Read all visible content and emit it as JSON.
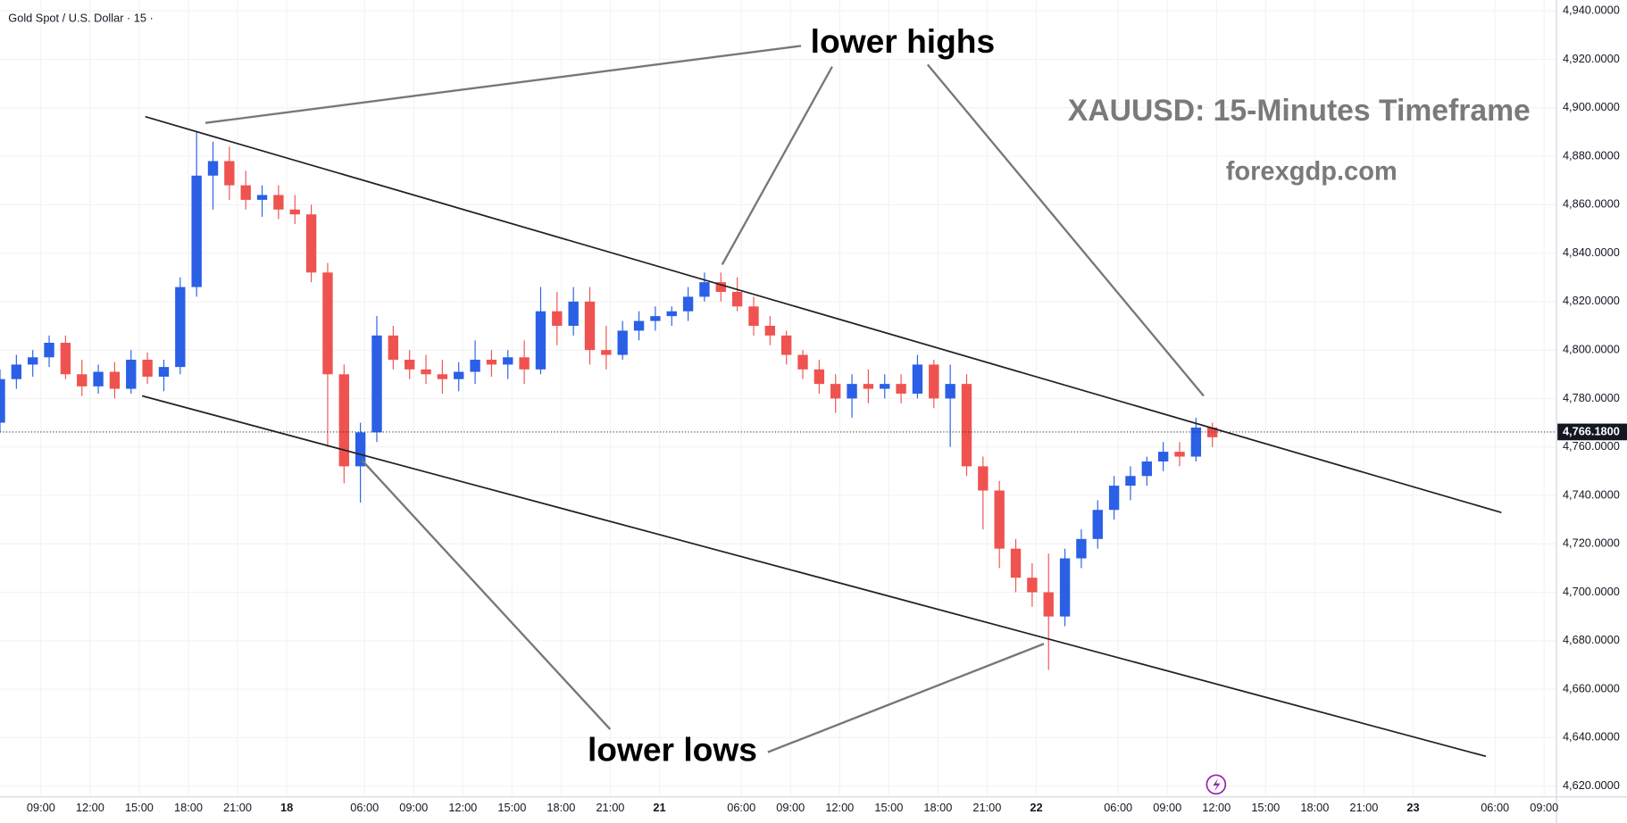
{
  "chart_data": {
    "type": "candlestick",
    "title": "Gold Spot / U.S. Dollar · 15 ·",
    "annotations": [
      "lower highs",
      "lower lows",
      "XAUUSD: 15-Minutes Timeframe",
      "forexgdp.com"
    ],
    "up_color": "#2a5fe6",
    "down_color": "#ef5350",
    "x": [
      0,
      4,
      8,
      12,
      16,
      20,
      24,
      28,
      32,
      36,
      40,
      44,
      48,
      52,
      56,
      60,
      64,
      68,
      72,
      76,
      80,
      84,
      88,
      92,
      96,
      100,
      104,
      108,
      112,
      116,
      120,
      124,
      128,
      132,
      136,
      140,
      144,
      148,
      152,
      156,
      160,
      164,
      168,
      172,
      176,
      180,
      184,
      188,
      192,
      196,
      200,
      204,
      208,
      212,
      216,
      220,
      224,
      228,
      232,
      236,
      240,
      244,
      248,
      252,
      256,
      260,
      264,
      268,
      272,
      276,
      280,
      284,
      288,
      292,
      296
    ],
    "open": [
      4770,
      4788,
      4794,
      4797,
      4803,
      4790,
      4785,
      4791,
      4784,
      4796,
      4789,
      4793,
      4826,
      4872,
      4878,
      4868,
      4862,
      4864,
      4858,
      4856,
      4832,
      4790,
      4752,
      4766,
      4806,
      4796,
      4792,
      4790,
      4788,
      4791,
      4796,
      4794,
      4797,
      4792,
      4816,
      4810,
      4820,
      4800,
      4798,
      4808,
      4812,
      4814,
      4816,
      4822,
      4828,
      4824,
      4818,
      4810,
      4806,
      4798,
      4792,
      4786,
      4780,
      4786,
      4784,
      4786,
      4782,
      4794,
      4780,
      4786,
      4752,
      4742,
      4718,
      4706,
      4700,
      4690,
      4714,
      4722,
      4734,
      4744,
      4748,
      4754,
      4758,
      4756,
      4768
    ],
    "high": [
      4792,
      4798,
      4800,
      4806,
      4806,
      4796,
      4794,
      4795,
      4800,
      4799,
      4796,
      4830,
      4890,
      4886,
      4884,
      4874,
      4868,
      4868,
      4864,
      4860,
      4836,
      4794,
      4770,
      4814,
      4810,
      4800,
      4798,
      4796,
      4795,
      4804,
      4800,
      4800,
      4804,
      4826,
      4824,
      4826,
      4826,
      4810,
      4812,
      4816,
      4818,
      4818,
      4826,
      4832,
      4832,
      4830,
      4822,
      4814,
      4808,
      4800,
      4796,
      4790,
      4790,
      4792,
      4790,
      4790,
      4798,
      4796,
      4794,
      4790,
      4756,
      4746,
      4722,
      4712,
      4716,
      4718,
      4726,
      4738,
      4748,
      4752,
      4756,
      4762,
      4762,
      4772,
      4770
    ],
    "low": [
      4766,
      4784,
      4789,
      4793,
      4788,
      4781,
      4782,
      4780,
      4782,
      4786,
      4783,
      4790,
      4822,
      4858,
      4862,
      4858,
      4855,
      4854,
      4852,
      4828,
      4760,
      4745,
      4737,
      4762,
      4792,
      4788,
      4786,
      4782,
      4783,
      4786,
      4789,
      4788,
      4786,
      4790,
      4802,
      4806,
      4794,
      4792,
      4796,
      4804,
      4808,
      4810,
      4812,
      4820,
      4820,
      4816,
      4806,
      4802,
      4794,
      4788,
      4782,
      4774,
      4772,
      4778,
      4780,
      4778,
      4780,
      4776,
      4760,
      4748,
      4726,
      4710,
      4700,
      4694,
      4668,
      4686,
      4710,
      4718,
      4730,
      4738,
      4744,
      4750,
      4752,
      4754,
      4760
    ],
    "close": [
      4788,
      4794,
      4797,
      4803,
      4790,
      4785,
      4791,
      4784,
      4796,
      4789,
      4793,
      4826,
      4872,
      4878,
      4868,
      4862,
      4864,
      4858,
      4856,
      4832,
      4790,
      4752,
      4766,
      4806,
      4796,
      4792,
      4790,
      4788,
      4791,
      4796,
      4794,
      4797,
      4792,
      4816,
      4810,
      4820,
      4800,
      4798,
      4808,
      4812,
      4814,
      4816,
      4822,
      4828,
      4824,
      4818,
      4810,
      4806,
      4798,
      4792,
      4786,
      4780,
      4786,
      4784,
      4786,
      4782,
      4794,
      4780,
      4786,
      4752,
      4742,
      4718,
      4706,
      4700,
      4690,
      4714,
      4722,
      4734,
      4744,
      4748,
      4754,
      4758,
      4756,
      4768,
      4764
    ],
    "xlim": [
      0,
      380
    ],
    "xticks": [
      {
        "value": 10,
        "label": "09:00"
      },
      {
        "value": 22,
        "label": "12:00"
      },
      {
        "value": 34,
        "label": "15:00"
      },
      {
        "value": 46,
        "label": "18:00"
      },
      {
        "value": 58,
        "label": "21:00"
      },
      {
        "value": 70,
        "label": "18"
      },
      {
        "value": 89,
        "label": "06:00"
      },
      {
        "value": 101,
        "label": "09:00"
      },
      {
        "value": 113,
        "label": "12:00"
      },
      {
        "value": 125,
        "label": "15:00"
      },
      {
        "value": 137,
        "label": "18:00"
      },
      {
        "value": 149,
        "label": "21:00"
      },
      {
        "value": 161,
        "label": "21"
      },
      {
        "value": 181,
        "label": "06:00"
      },
      {
        "value": 193,
        "label": "09:00"
      },
      {
        "value": 205,
        "label": "12:00"
      },
      {
        "value": 217,
        "label": "15:00"
      },
      {
        "value": 229,
        "label": "18:00"
      },
      {
        "value": 241,
        "label": "21:00"
      },
      {
        "value": 253,
        "label": "22"
      },
      {
        "value": 273,
        "label": "06:00"
      },
      {
        "value": 285,
        "label": "09:00"
      },
      {
        "value": 297,
        "label": "12:00"
      },
      {
        "value": 309,
        "label": "15:00"
      },
      {
        "value": 321,
        "label": "18:00"
      },
      {
        "value": 333,
        "label": "21:00"
      },
      {
        "value": 345,
        "label": "23"
      },
      {
        "value": 365,
        "label": "06:00"
      },
      {
        "value": 377,
        "label": "09:00"
      }
    ],
    "ylim": [
      4615.5,
      4944.5
    ],
    "yticks": [
      {
        "value": 4620,
        "label": "4,620.0000"
      },
      {
        "value": 4640,
        "label": "4,640.0000"
      },
      {
        "value": 4660,
        "label": "4,660.0000"
      },
      {
        "value": 4680,
        "label": "4,680.0000"
      },
      {
        "value": 4700,
        "label": "4,700.0000"
      },
      {
        "value": 4720,
        "label": "4,720.0000"
      },
      {
        "value": 4740,
        "label": "4,740.0000"
      },
      {
        "value": 4760,
        "label": "4,760.0000"
      },
      {
        "value": 4780,
        "label": "4,780.0000"
      },
      {
        "value": 4800,
        "label": "4,800.0000"
      },
      {
        "value": 4820,
        "label": "4,820.0000"
      },
      {
        "value": 4840,
        "label": "4,840.0000"
      },
      {
        "value": 4860,
        "label": "4,860.0000"
      },
      {
        "value": 4880,
        "label": "4,880.0000"
      },
      {
        "value": 4900,
        "label": "4,900.0000"
      },
      {
        "value": 4920,
        "label": "4,920.0000"
      },
      {
        "value": 4940,
        "label": "4,940.0000"
      }
    ],
    "last_price": {
      "value": 4766.18,
      "label": "4,766.1800"
    }
  }
}
